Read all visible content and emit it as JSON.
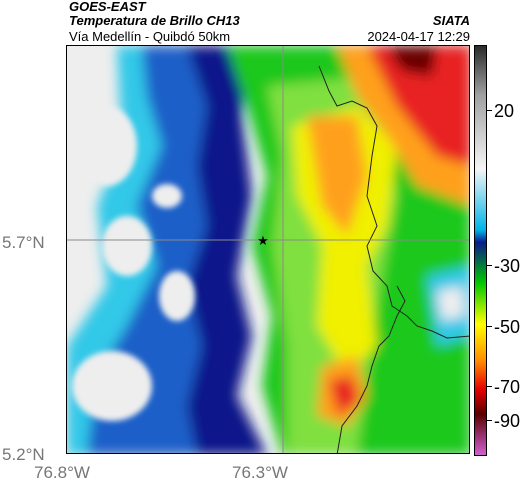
{
  "header": {
    "satellite": "GOES-EAST",
    "product": "Temperatura de Brillo CH13",
    "route": "Vía Medellín - Quibdó 50km",
    "organization": "SIATA",
    "timestamp": "2024-04-17 12:29"
  },
  "axes": {
    "lat_labels": [
      "5.7°N",
      "5.2°N"
    ],
    "lon_labels": [
      "76.8°W",
      "76.3°W"
    ]
  },
  "colorbar": {
    "labels": [
      "20",
      "-30",
      "-50",
      "-70",
      "-90"
    ],
    "colors": [
      "#2b2b2b",
      "#a0a0a0",
      "#f5f5f5",
      "#00b4e6",
      "#0a1a8c",
      "#00c800",
      "#ffff00",
      "#ff8c00",
      "#e60000",
      "#5a0000",
      "#d060d0"
    ]
  },
  "map": {
    "marker": "star-icon",
    "colors": {
      "white": "#eeeeee",
      "cyan": "#33c8e8",
      "blue": "#1a5fc8",
      "navy": "#08168a",
      "green": "#1ec81e",
      "lightgreen": "#7fe040",
      "yellow": "#f0f000",
      "orange": "#ffa01e",
      "red": "#e82020",
      "darkred": "#6a0000"
    }
  }
}
